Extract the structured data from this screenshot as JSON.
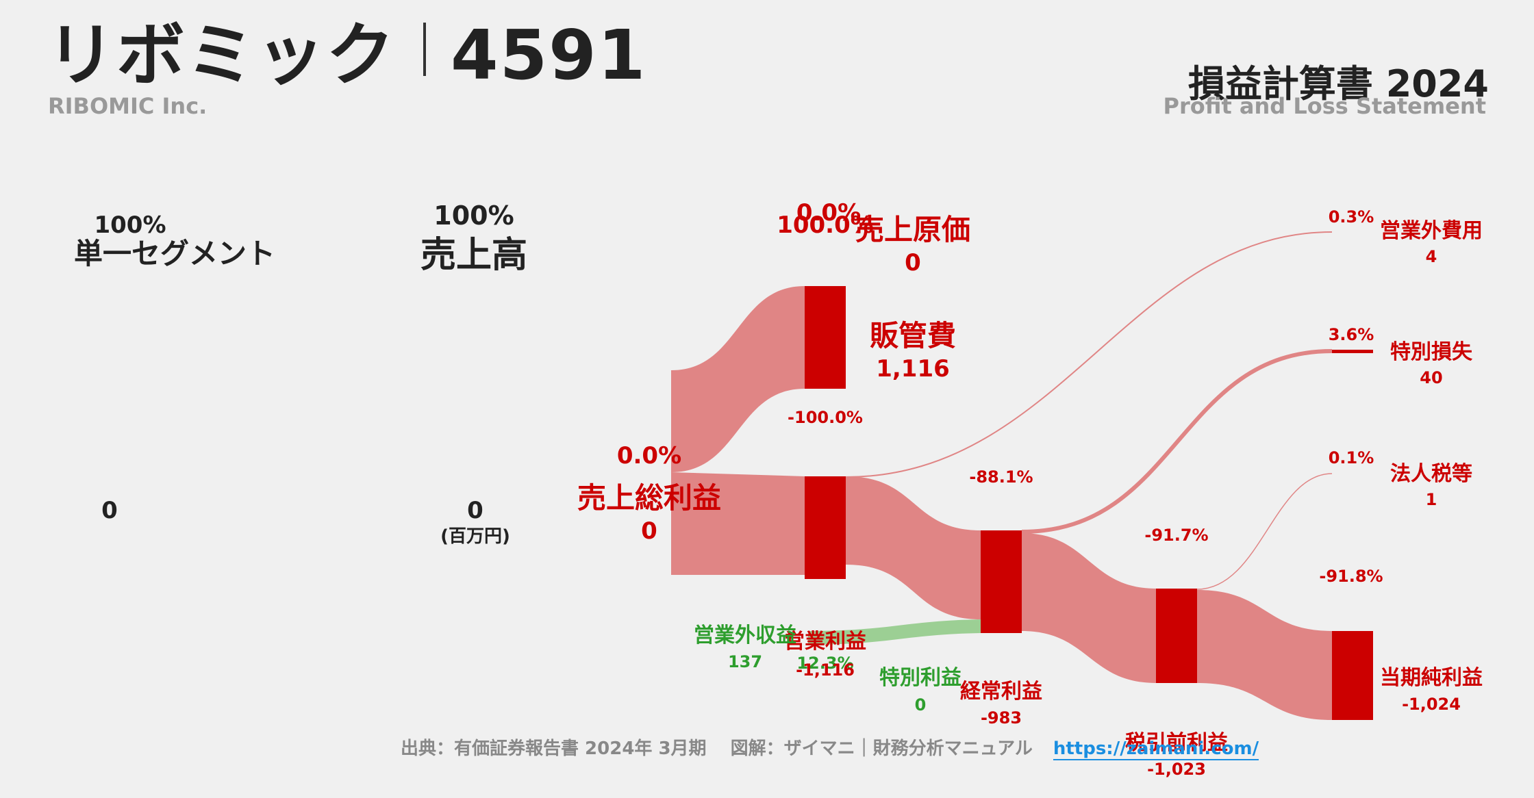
{
  "header": {
    "company": "リボミック",
    "code": "4591",
    "company_en": "RIBOMIC Inc.",
    "statement_title": "損益計算書 2024",
    "statement_title_en": "Profit and Loss Statement"
  },
  "footer": {
    "source": "出典：有価証券報告書 2024年 3月期　 図解：ザイマニ｜財務分析マニュアル",
    "link": "https://zaimani.com/"
  },
  "colors": {
    "loss": "#cc0000",
    "loss_flow": "#e08585",
    "profit": "#2e9e2e",
    "profit_flow": "#9ccf94"
  },
  "chart_data": {
    "type": "sankey",
    "unit": "(百万円)",
    "nodes": [
      {
        "id": "segment",
        "label": "単一セグメント",
        "value": "0",
        "pct": "100%"
      },
      {
        "id": "sales",
        "label": "売上高",
        "value": "0",
        "pct": "100%"
      },
      {
        "id": "cogs",
        "label": "売上原価",
        "value": "0",
        "pct": "0.0%",
        "pct2": "100.0%"
      },
      {
        "id": "gross",
        "label": "売上総利益",
        "value": "0",
        "pct": "0.0%"
      },
      {
        "id": "sga",
        "label": "販管費",
        "value": "1,116",
        "pct": "-100.0%"
      },
      {
        "id": "operating",
        "label": "営業利益",
        "value": "-1,116",
        "pct": "12.3%"
      },
      {
        "id": "non_op_income",
        "label": "営業外収益",
        "value": "137"
      },
      {
        "id": "non_op_expense",
        "label": "営業外費用",
        "value": "4",
        "pct": "0.3%"
      },
      {
        "id": "ordinary",
        "label": "経常利益",
        "value": "-983",
        "pct": "-88.1%"
      },
      {
        "id": "extra_gain",
        "label": "特別利益",
        "value": "0"
      },
      {
        "id": "extra_loss",
        "label": "特別損失",
        "value": "40",
        "pct": "3.6%"
      },
      {
        "id": "pretax",
        "label": "税引前利益",
        "value": "-1,023",
        "pct": "-91.7%"
      },
      {
        "id": "tax",
        "label": "法人税等",
        "value": "1",
        "pct": "0.1%"
      },
      {
        "id": "net",
        "label": "当期純利益",
        "value": "-1,024",
        "pct": "-91.8%"
      }
    ],
    "flows": [
      {
        "from": "gross",
        "to": "sga",
        "value": 1116
      },
      {
        "from": "gross",
        "to": "operating",
        "value": 1116
      },
      {
        "from": "operating",
        "to": "ordinary",
        "value": 983
      },
      {
        "from": "non_op_income",
        "to": "ordinary",
        "value": 137
      },
      {
        "from": "operating",
        "to": "non_op_expense",
        "value": 4
      },
      {
        "from": "ordinary",
        "to": "pretax",
        "value": 983
      },
      {
        "from": "ordinary",
        "to": "extra_loss",
        "value": 40
      },
      {
        "from": "pretax",
        "to": "net",
        "value": 1023
      },
      {
        "from": "pretax",
        "to": "tax",
        "value": 1
      }
    ]
  }
}
